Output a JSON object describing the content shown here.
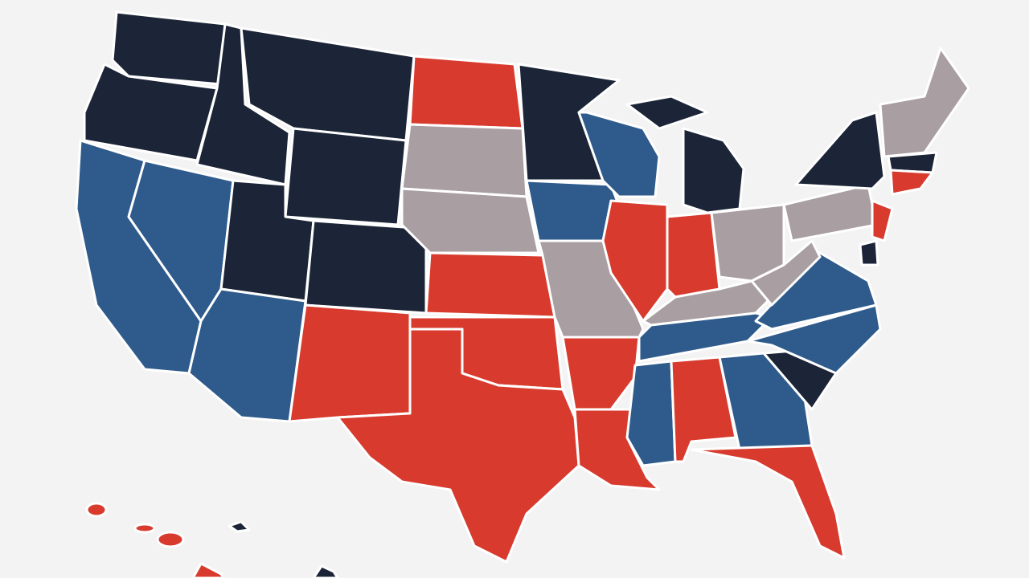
{
  "palette": [
    "#1c2537",
    "#2e5b8c",
    "#d83b2e",
    "#a99ea2"
  ]
}
